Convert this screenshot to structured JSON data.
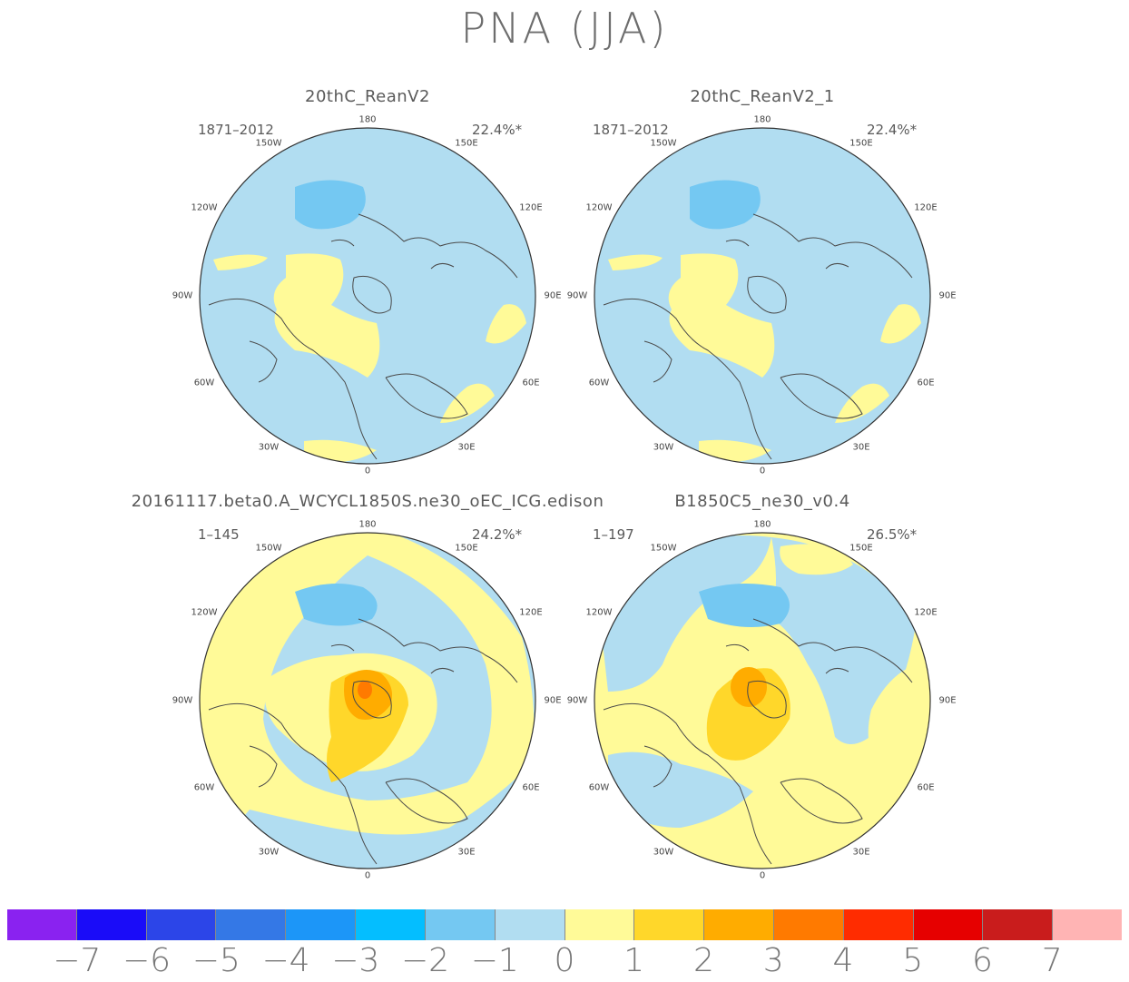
{
  "title": "PNA (JJA)",
  "colors": {
    "neg7": "#8a22f0",
    "neg6": "#1a0cf8",
    "neg5": "#2c45e8",
    "neg4": "#3478e6",
    "neg3": "#1c96f8",
    "neg2": "#04beff",
    "neg1": "#74c8f2",
    "zero": "#b1ddf1",
    "pos1": "#fffa98",
    "pos2": "#ffd72a",
    "pos3": "#ffac00",
    "pos4": "#ff7a00",
    "pos5": "#ff2c00",
    "pos6": "#e60000",
    "pos7": "#c91c1c",
    "pos8": "#ffb4b4"
  },
  "panels": [
    {
      "name": "20thC_ReanV2",
      "years": "1871–2012",
      "pct": "22.4%*"
    },
    {
      "name": "20thC_ReanV2_1",
      "years": "1871–2012",
      "pct": "22.4%*"
    },
    {
      "name": "20161117.beta0.A_WCYCL1850S.ne30_oEC_ICG.edison",
      "years": "1–145",
      "pct": "24.2%*"
    },
    {
      "name": "B1850C5_ne30_v0.4",
      "years": "1–197",
      "pct": "26.5%*"
    }
  ],
  "longitude_labels": [
    "180",
    "150E",
    "120E",
    "90E",
    "60E",
    "30E",
    "0",
    "30W",
    "60W",
    "90W",
    "120W",
    "150W"
  ],
  "colorbar": {
    "colors": [
      "#8a22f0",
      "#1a0cf8",
      "#2c45e8",
      "#3478e6",
      "#1c96f8",
      "#04beff",
      "#74c8f2",
      "#b1ddf1",
      "#fffa98",
      "#ffd72a",
      "#ffac00",
      "#ff7a00",
      "#ff2c00",
      "#e60000",
      "#c91c1c",
      "#ffb4b4"
    ],
    "labels": [
      "−7",
      "−6",
      "−5",
      "−4",
      "−3",
      "−2",
      "−1",
      "0",
      "1",
      "2",
      "3",
      "4",
      "5",
      "6",
      "7"
    ]
  }
}
